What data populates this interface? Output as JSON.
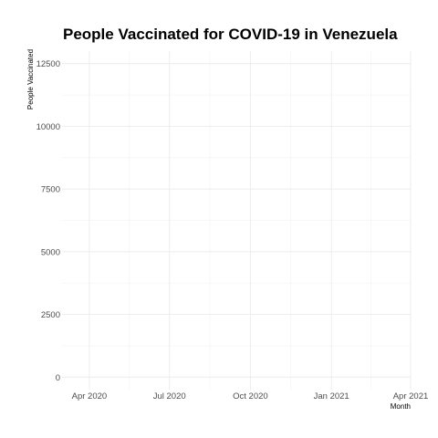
{
  "chart_data": {
    "type": "line",
    "title": "People Vaccinated for COVID-19 in Venezuela",
    "xlabel": "Month",
    "ylabel": "People Vaccinated",
    "x_ticks": [
      "Apr 2020",
      "Jul 2020",
      "Oct 2020",
      "Jan 2021",
      "Apr 2021"
    ],
    "y_ticks": [
      0,
      2500,
      5000,
      7500,
      10000,
      12500
    ],
    "xlim": [
      "2020-03-01",
      "2021-04-01"
    ],
    "ylim": [
      -500,
      13000
    ],
    "grid": true,
    "series": []
  }
}
